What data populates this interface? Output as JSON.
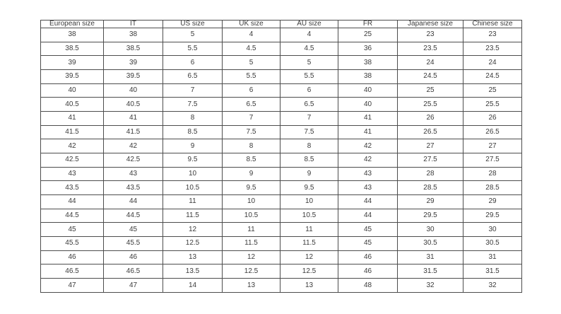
{
  "table": {
    "headers": [
      "European size",
      "IT",
      "US size",
      "UK size",
      "AU size",
      "FR",
      "Japanese size",
      "Chinese size"
    ],
    "rows": [
      [
        "38",
        "38",
        "5",
        "4",
        "4",
        "25",
        "23",
        "23"
      ],
      [
        "38.5",
        "38.5",
        "5.5",
        "4.5",
        "4.5",
        "36",
        "23.5",
        "23.5"
      ],
      [
        "39",
        "39",
        "6",
        "5",
        "5",
        "38",
        "24",
        "24"
      ],
      [
        "39.5",
        "39.5",
        "6.5",
        "5.5",
        "5.5",
        "38",
        "24.5",
        "24.5"
      ],
      [
        "40",
        "40",
        "7",
        "6",
        "6",
        "40",
        "25",
        "25"
      ],
      [
        "40.5",
        "40.5",
        "7.5",
        "6.5",
        "6.5",
        "40",
        "25.5",
        "25.5"
      ],
      [
        "41",
        "41",
        "8",
        "7",
        "7",
        "41",
        "26",
        "26"
      ],
      [
        "41.5",
        "41.5",
        "8.5",
        "7.5",
        "7.5",
        "41",
        "26.5",
        "26.5"
      ],
      [
        "42",
        "42",
        "9",
        "8",
        "8",
        "42",
        "27",
        "27"
      ],
      [
        "42.5",
        "42.5",
        "9.5",
        "8.5",
        "8.5",
        "42",
        "27.5",
        "27.5"
      ],
      [
        "43",
        "43",
        "10",
        "9",
        "9",
        "43",
        "28",
        "28"
      ],
      [
        "43.5",
        "43.5",
        "10.5",
        "9.5",
        "9.5",
        "43",
        "28.5",
        "28.5"
      ],
      [
        "44",
        "44",
        "11",
        "10",
        "10",
        "44",
        "29",
        "29"
      ],
      [
        "44.5",
        "44.5",
        "11.5",
        "10.5",
        "10.5",
        "44",
        "29.5",
        "29.5"
      ],
      [
        "45",
        "45",
        "12",
        "11",
        "11",
        "45",
        "30",
        "30"
      ],
      [
        "45.5",
        "45.5",
        "12.5",
        "11.5",
        "11.5",
        "45",
        "30.5",
        "30.5"
      ],
      [
        "46",
        "46",
        "13",
        "12",
        "12",
        "46",
        "31",
        "31"
      ],
      [
        "46.5",
        "46.5",
        "13.5",
        "12.5",
        "12.5",
        "46",
        "31.5",
        "31.5"
      ],
      [
        "47",
        "47",
        "14",
        "13",
        "13",
        "48",
        "32",
        "32"
      ]
    ]
  },
  "chart_data": {
    "type": "table",
    "columns": [
      "European size",
      "IT",
      "US size",
      "UK size",
      "AU size",
      "FR",
      "Japanese size",
      "Chinese size"
    ],
    "rows": [
      [
        "38",
        "38",
        "5",
        "4",
        "4",
        "25",
        "23",
        "23"
      ],
      [
        "38.5",
        "38.5",
        "5.5",
        "4.5",
        "4.5",
        "36",
        "23.5",
        "23.5"
      ],
      [
        "39",
        "39",
        "6",
        "5",
        "5",
        "38",
        "24",
        "24"
      ],
      [
        "39.5",
        "39.5",
        "6.5",
        "5.5",
        "5.5",
        "38",
        "24.5",
        "24.5"
      ],
      [
        "40",
        "40",
        "7",
        "6",
        "6",
        "40",
        "25",
        "25"
      ],
      [
        "40.5",
        "40.5",
        "7.5",
        "6.5",
        "6.5",
        "40",
        "25.5",
        "25.5"
      ],
      [
        "41",
        "41",
        "8",
        "7",
        "7",
        "41",
        "26",
        "26"
      ],
      [
        "41.5",
        "41.5",
        "8.5",
        "7.5",
        "7.5",
        "41",
        "26.5",
        "26.5"
      ],
      [
        "42",
        "42",
        "9",
        "8",
        "8",
        "42",
        "27",
        "27"
      ],
      [
        "42.5",
        "42.5",
        "9.5",
        "8.5",
        "8.5",
        "42",
        "27.5",
        "27.5"
      ],
      [
        "43",
        "43",
        "10",
        "9",
        "9",
        "43",
        "28",
        "28"
      ],
      [
        "43.5",
        "43.5",
        "10.5",
        "9.5",
        "9.5",
        "43",
        "28.5",
        "28.5"
      ],
      [
        "44",
        "44",
        "11",
        "10",
        "10",
        "44",
        "29",
        "29"
      ],
      [
        "44.5",
        "44.5",
        "11.5",
        "10.5",
        "10.5",
        "44",
        "29.5",
        "29.5"
      ],
      [
        "45",
        "45",
        "12",
        "11",
        "11",
        "45",
        "30",
        "30"
      ],
      [
        "45.5",
        "45.5",
        "12.5",
        "11.5",
        "11.5",
        "45",
        "30.5",
        "30.5"
      ],
      [
        "46",
        "46",
        "13",
        "12",
        "12",
        "46",
        "31",
        "31"
      ],
      [
        "46.5",
        "46.5",
        "13.5",
        "12.5",
        "12.5",
        "46",
        "31.5",
        "31.5"
      ],
      [
        "47",
        "47",
        "14",
        "13",
        "13",
        "48",
        "32",
        "32"
      ]
    ]
  },
  "colors": {
    "background": "#ffffff",
    "border": "#4d4d4d",
    "text": "#3b3b3b"
  }
}
